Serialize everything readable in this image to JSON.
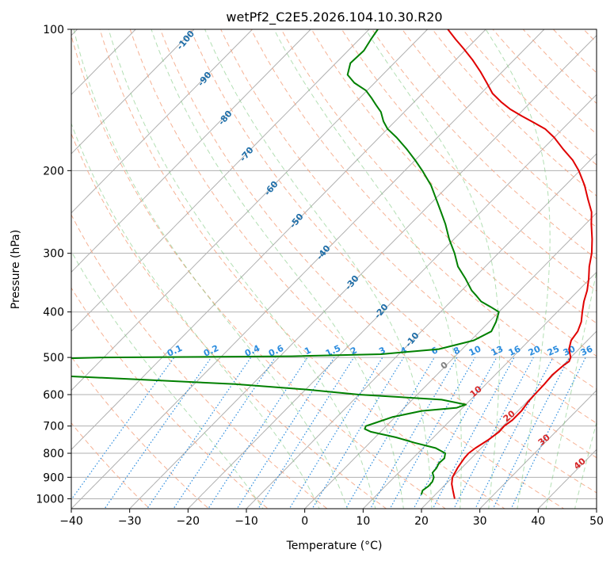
{
  "chart_data": {
    "type": "skew-t",
    "title": "wetPf2_C2E5.2026.104.10.30.R20",
    "xlabel": "Temperature (°C)",
    "ylabel": "Pressure (hPa)",
    "xlim": [
      -40,
      50
    ],
    "ylim": [
      1050,
      100
    ],
    "x_ticks": [
      -40,
      -30,
      -20,
      -10,
      0,
      10,
      20,
      30,
      40,
      50
    ],
    "x_tick_labels": [
      "−40",
      "−30",
      "−20",
      "−10",
      "0",
      "10",
      "20",
      "30",
      "40",
      "50"
    ],
    "y_ticks": [
      1000,
      900,
      800,
      700,
      600,
      500,
      400,
      300,
      200,
      100
    ],
    "y_tick_labels": [
      "1000",
      "900",
      "800",
      "700",
      "600",
      "500",
      "400",
      "300",
      "200",
      "100"
    ],
    "grid": true,
    "series": [
      {
        "name": "temperature",
        "color": "#e00000",
        "points": [
          [
            1000,
            24
          ],
          [
            960,
            22.3
          ],
          [
            930,
            21
          ],
          [
            900,
            20
          ],
          [
            860,
            19.3
          ],
          [
            820,
            18.8
          ],
          [
            800,
            18.7
          ],
          [
            780,
            19
          ],
          [
            750,
            19.8
          ],
          [
            720,
            20.3
          ],
          [
            700,
            20.2
          ],
          [
            680,
            20.6
          ],
          [
            650,
            20.6
          ],
          [
            620,
            20.2
          ],
          [
            600,
            20.1
          ],
          [
            570,
            20
          ],
          [
            545,
            19.8
          ],
          [
            520,
            20.1
          ],
          [
            510,
            20.4
          ],
          [
            500,
            20
          ],
          [
            480,
            18.3
          ],
          [
            460,
            17.2
          ],
          [
            440,
            16.8
          ],
          [
            420,
            15.8
          ],
          [
            400,
            14.3
          ],
          [
            380,
            12.8
          ],
          [
            360,
            11.5
          ],
          [
            340,
            9.8
          ],
          [
            320,
            7.8
          ],
          [
            300,
            6
          ],
          [
            280,
            3.7
          ],
          [
            260,
            1
          ],
          [
            245,
            -1
          ],
          [
            230,
            -3.8
          ],
          [
            215,
            -6.7
          ],
          [
            200,
            -10.2
          ],
          [
            190,
            -13
          ],
          [
            180,
            -16.5
          ],
          [
            170,
            -20
          ],
          [
            163,
            -23
          ],
          [
            158,
            -26
          ],
          [
            153,
            -29.2
          ],
          [
            148,
            -32.3
          ],
          [
            143,
            -35
          ],
          [
            137,
            -38
          ],
          [
            130,
            -40.8
          ],
          [
            123,
            -43.8
          ],
          [
            116,
            -47.2
          ],
          [
            110,
            -50.5
          ],
          [
            105,
            -53.5
          ],
          [
            100,
            -56.5
          ]
        ]
      },
      {
        "name": "dewpoint",
        "color": "#008000",
        "points": [
          [
            980,
            17.6
          ],
          [
            960,
            17.1
          ],
          [
            940,
            17.4
          ],
          [
            920,
            17.3
          ],
          [
            900,
            16.8
          ],
          [
            880,
            15.8
          ],
          [
            860,
            15.7
          ],
          [
            840,
            15.3
          ],
          [
            820,
            15.4
          ],
          [
            800,
            14.7
          ],
          [
            780,
            12.2
          ],
          [
            760,
            7.7
          ],
          [
            740,
            3.6
          ],
          [
            720,
            -1.7
          ],
          [
            710,
            -3.2
          ],
          [
            700,
            -3.5
          ],
          [
            690,
            -2.5
          ],
          [
            670,
            -0.5
          ],
          [
            650,
            3.5
          ],
          [
            640,
            9
          ],
          [
            630,
            10
          ],
          [
            615,
            5
          ],
          [
            600,
            -10
          ],
          [
            585,
            -20
          ],
          [
            570,
            -33
          ],
          [
            555,
            -53
          ],
          [
            540,
            -75
          ],
          [
            530,
            -85
          ],
          [
            525,
            -87.5
          ],
          [
            520,
            -87
          ],
          [
            513,
            -82
          ],
          [
            505,
            -73
          ],
          [
            500,
            -60
          ],
          [
            497,
            -28
          ],
          [
            492,
            -13
          ],
          [
            480,
            -4
          ],
          [
            460,
            0.5
          ],
          [
            440,
            2
          ],
          [
            420,
            1.2
          ],
          [
            400,
            0
          ],
          [
            390,
            -2.3
          ],
          [
            380,
            -4.8
          ],
          [
            370,
            -6.5
          ],
          [
            360,
            -8.3
          ],
          [
            340,
            -11.3
          ],
          [
            320,
            -14.7
          ],
          [
            300,
            -17.5
          ],
          [
            280,
            -20.8
          ],
          [
            260,
            -24
          ],
          [
            245,
            -26.8
          ],
          [
            230,
            -29.8
          ],
          [
            215,
            -33
          ],
          [
            200,
            -37
          ],
          [
            190,
            -40
          ],
          [
            180,
            -43.3
          ],
          [
            170,
            -47
          ],
          [
            163,
            -50
          ],
          [
            157,
            -52
          ],
          [
            150,
            -54
          ],
          [
            145,
            -56
          ],
          [
            140,
            -58
          ],
          [
            135,
            -60.2
          ],
          [
            130,
            -63.5
          ],
          [
            125,
            -66
          ],
          [
            118,
            -67.5
          ],
          [
            111,
            -67.3
          ],
          [
            105,
            -68
          ],
          [
            100,
            -68.5
          ]
        ]
      }
    ],
    "dry_adiabat_labels": [
      "-100",
      "-90",
      "-80",
      "-70",
      "-60",
      "-50",
      "-40",
      "-30",
      "-20",
      "-10"
    ],
    "moist_adiabat_labels": [
      "0",
      "10",
      "20",
      "30",
      "40"
    ],
    "mixing_ratio_labels": [
      "0.1",
      "0.2",
      "0.4",
      "0.6",
      "1",
      "1.5",
      "2",
      "3",
      "4",
      "6",
      "8",
      "10",
      "13",
      "16",
      "20",
      "25",
      "30",
      "36"
    ]
  }
}
